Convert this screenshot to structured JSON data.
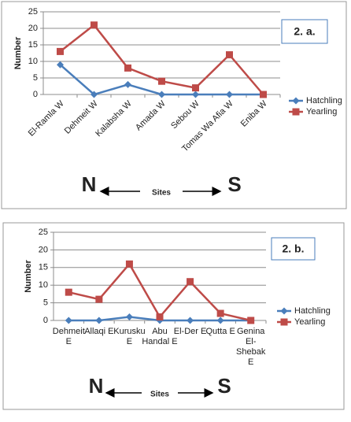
{
  "chart_data": [
    {
      "type": "line",
      "panel_label": "2. a.",
      "y_label": "Number",
      "x_label": "Sites",
      "direction_labels": {
        "left": "N",
        "right": "S"
      },
      "categories": [
        "El-Ramla W",
        "Dehmeit W",
        "Kalabsha W",
        "Amada W",
        "Sebou W",
        "Tomas Wa Afia W",
        "Eniba W"
      ],
      "series": [
        {
          "name": "Hatchling",
          "color": "#4a7ebb",
          "marker": "diamond",
          "values": [
            9,
            0,
            3,
            0,
            0,
            0,
            0
          ]
        },
        {
          "name": "Yearling",
          "color": "#be4b48",
          "marker": "square",
          "values": [
            13,
            21,
            8,
            4,
            2,
            12,
            0
          ]
        }
      ],
      "ylim": [
        0,
        25
      ],
      "yticks": [
        0,
        5,
        10,
        15,
        20,
        25
      ],
      "grid": true,
      "legend": "right"
    },
    {
      "type": "line",
      "panel_label": "2. b.",
      "y_label": "Number",
      "x_label": "Sites",
      "direction_labels": {
        "left": "N",
        "right": "S"
      },
      "categories": [
        "Dehmeit E",
        "Allaqi E",
        "Kurusku E",
        "Abu Handal E",
        "El-Der E",
        "Qutta E",
        "Genina El-Shebak E"
      ],
      "series": [
        {
          "name": "Hatchling",
          "color": "#4a7ebb",
          "marker": "diamond",
          "values": [
            0,
            0,
            1,
            0,
            0,
            0,
            0
          ]
        },
        {
          "name": "Yearling",
          "color": "#be4b48",
          "marker": "square",
          "values": [
            8,
            6,
            16,
            1,
            11,
            2,
            0
          ]
        }
      ],
      "ylim": [
        0,
        25
      ],
      "yticks": [
        0,
        5,
        10,
        15,
        20,
        25
      ],
      "grid": true,
      "legend": "right"
    }
  ]
}
